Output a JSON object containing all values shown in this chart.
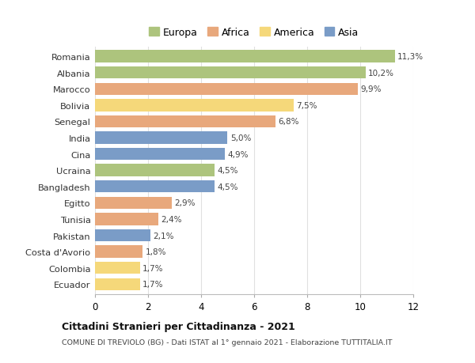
{
  "countries": [
    "Romania",
    "Albania",
    "Marocco",
    "Bolivia",
    "Senegal",
    "India",
    "Cina",
    "Ucraina",
    "Bangladesh",
    "Egitto",
    "Tunisia",
    "Pakistan",
    "Costa d'Avorio",
    "Colombia",
    "Ecuador"
  ],
  "values": [
    11.3,
    10.2,
    9.9,
    7.5,
    6.8,
    5.0,
    4.9,
    4.5,
    4.5,
    2.9,
    2.4,
    2.1,
    1.8,
    1.7,
    1.7
  ],
  "labels": [
    "11,3%",
    "10,2%",
    "9,9%",
    "7,5%",
    "6,8%",
    "5,0%",
    "4,9%",
    "4,5%",
    "4,5%",
    "2,9%",
    "2,4%",
    "2,1%",
    "1,8%",
    "1,7%",
    "1,7%"
  ],
  "continents": [
    "Europa",
    "Europa",
    "Africa",
    "America",
    "Africa",
    "Asia",
    "Asia",
    "Europa",
    "Asia",
    "Africa",
    "Africa",
    "Asia",
    "Africa",
    "America",
    "America"
  ],
  "colors": {
    "Europa": "#adc47d",
    "Africa": "#e8a87c",
    "America": "#f5d87a",
    "Asia": "#7a9cc7"
  },
  "legend_order": [
    "Europa",
    "Africa",
    "America",
    "Asia"
  ],
  "title": "Cittadini Stranieri per Cittadinanza - 2021",
  "subtitle": "COMUNE DI TREVIOLO (BG) - Dati ISTAT al 1° gennaio 2021 - Elaborazione TUTTITALIA.IT",
  "xlim": [
    0,
    12
  ],
  "xticks": [
    0,
    2,
    4,
    6,
    8,
    10,
    12
  ],
  "background_color": "#ffffff",
  "grid_color": "#e0e0e0"
}
